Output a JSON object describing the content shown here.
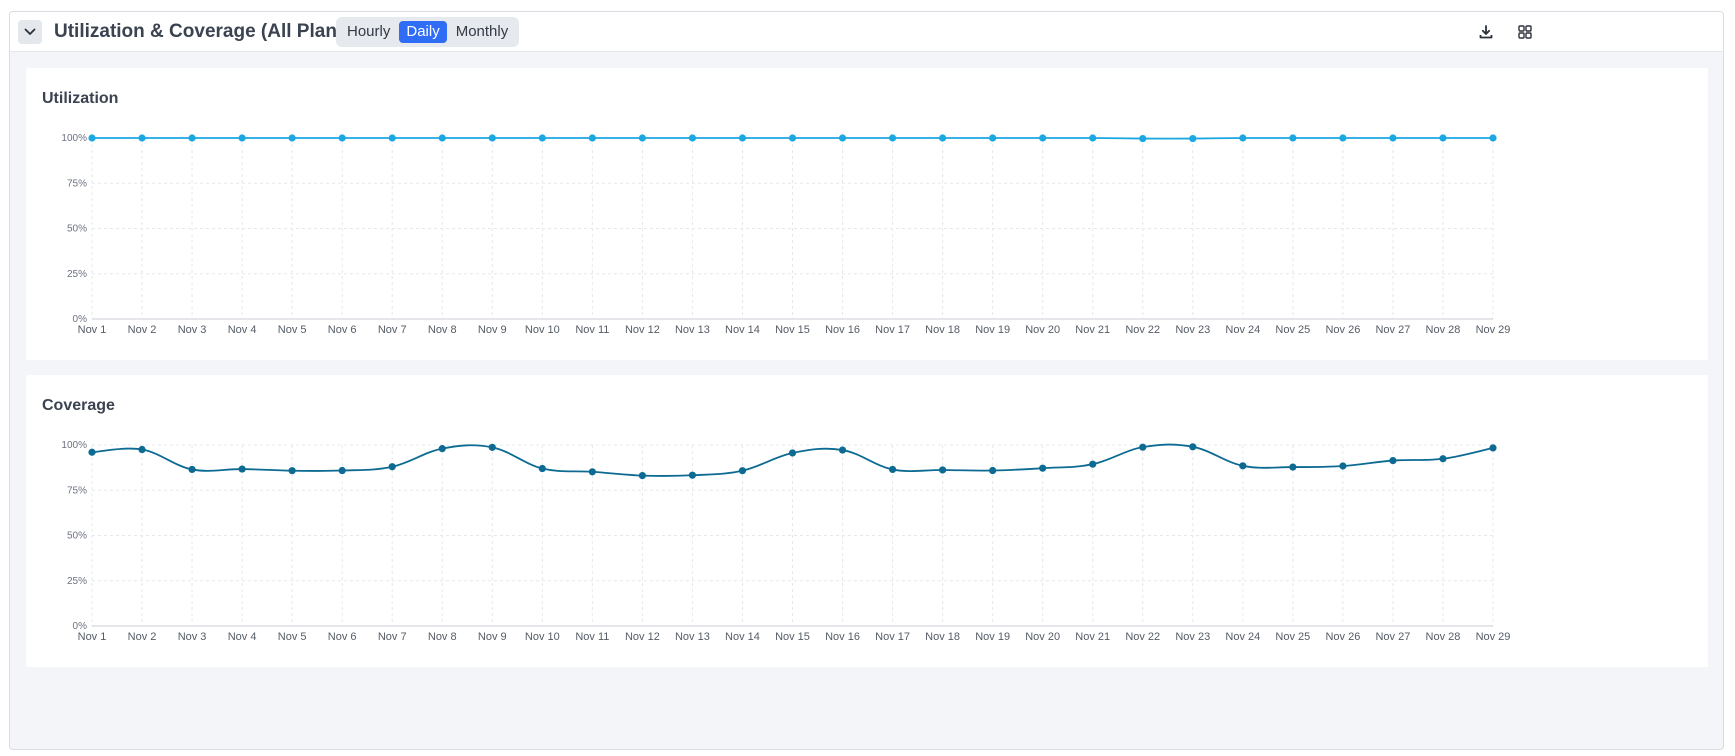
{
  "header": {
    "title": "Utilization & Coverage (All Plans)",
    "granularity": {
      "options": [
        "Hourly",
        "Daily",
        "Monthly"
      ],
      "selected": "Daily"
    },
    "icons": {
      "collapse": "chevron-down-icon",
      "download": "download-icon",
      "layout": "grid-layout-icon"
    }
  },
  "colors": {
    "accent": "#2f6df6",
    "utilization_line": "#1aa7e2",
    "coverage_line": "#0d6b93"
  },
  "chart_data": [
    {
      "type": "line",
      "title": "Utilization",
      "x": [
        "Nov 1",
        "Nov 2",
        "Nov 3",
        "Nov 4",
        "Nov 5",
        "Nov 6",
        "Nov 7",
        "Nov 8",
        "Nov 9",
        "Nov 10",
        "Nov 11",
        "Nov 12",
        "Nov 13",
        "Nov 14",
        "Nov 15",
        "Nov 16",
        "Nov 17",
        "Nov 18",
        "Nov 19",
        "Nov 20",
        "Nov 21",
        "Nov 22",
        "Nov 23",
        "Nov 24",
        "Nov 25",
        "Nov 26",
        "Nov 27",
        "Nov 28",
        "Nov 29"
      ],
      "series": [
        {
          "name": "",
          "values": [
            100,
            100,
            100,
            100,
            100,
            100,
            100,
            100,
            100,
            100,
            100,
            100,
            100,
            100,
            100,
            100,
            100,
            100,
            100,
            100,
            100,
            99.7,
            99.7,
            100,
            100,
            100,
            100,
            100,
            100
          ]
        }
      ],
      "yticks": [
        "0%",
        "25%",
        "50%",
        "75%",
        "100%"
      ],
      "ylim": [
        0,
        100
      ],
      "grid": true,
      "legend": "none"
    },
    {
      "type": "line",
      "title": "Coverage",
      "x": [
        "Nov 1",
        "Nov 2",
        "Nov 3",
        "Nov 4",
        "Nov 5",
        "Nov 6",
        "Nov 7",
        "Nov 8",
        "Nov 9",
        "Nov 10",
        "Nov 11",
        "Nov 12",
        "Nov 13",
        "Nov 14",
        "Nov 15",
        "Nov 16",
        "Nov 17",
        "Nov 18",
        "Nov 19",
        "Nov 20",
        "Nov 21",
        "Nov 22",
        "Nov 23",
        "Nov 24",
        "Nov 25",
        "Nov 26",
        "Nov 27",
        "Nov 28",
        "Nov 29"
      ],
      "series": [
        {
          "name": "",
          "values": [
            96,
            97.5,
            86.5,
            86.7,
            85.8,
            85.9,
            88,
            98,
            98.7,
            87,
            85.2,
            83.1,
            83.3,
            85.8,
            95.6,
            97.2,
            86.5,
            86.2,
            85.9,
            87.2,
            89.4,
            98.8,
            99,
            88.5,
            87.8,
            88.4,
            91.4,
            92.4,
            98.4
          ]
        }
      ],
      "yticks": [
        "0%",
        "25%",
        "50%",
        "75%",
        "100%"
      ],
      "ylim": [
        0,
        100
      ],
      "grid": true,
      "legend": "none"
    }
  ]
}
